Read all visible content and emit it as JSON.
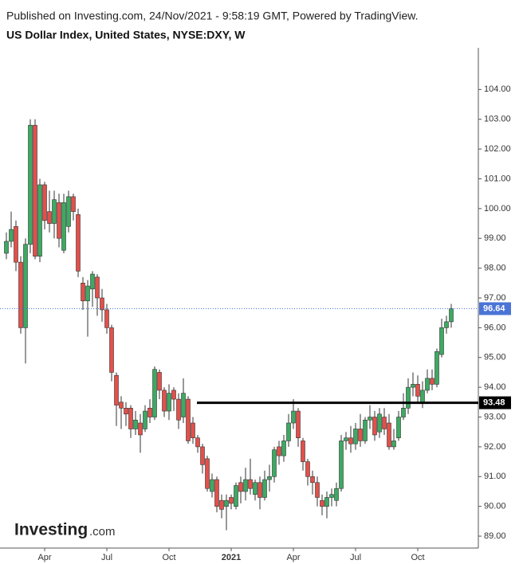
{
  "chart_data": {
    "type": "candlestick",
    "subtitle": "Published on Investing.com, 24/Nov/2021 - 9:58:19 GMT, Powered by TradingView.",
    "title": "US Dollar Index, United States, NYSE:DXY, W",
    "watermark": {
      "name": "Investing",
      "suffix": ".com"
    },
    "categories": [
      null,
      null,
      null,
      null,
      null,
      null,
      null,
      null,
      "Apr",
      null,
      null,
      null,
      null,
      null,
      null,
      null,
      null,
      null,
      null,
      null,
      null,
      "Jul",
      null,
      null,
      null,
      null,
      null,
      null,
      null,
      null,
      null,
      null,
      null,
      null,
      "Oct",
      null,
      null,
      null,
      null,
      null,
      null,
      null,
      null,
      null,
      null,
      null,
      null,
      "2021",
      null,
      null,
      null,
      null,
      null,
      null,
      null,
      null,
      null,
      null,
      null,
      null,
      "Apr",
      null,
      null,
      null,
      null,
      null,
      null,
      null,
      null,
      null,
      null,
      null,
      null,
      "Jul",
      null,
      null,
      null,
      null,
      null,
      null,
      null,
      null,
      null,
      null,
      null,
      null,
      "Oct",
      null,
      null,
      null,
      null,
      null,
      null,
      null
    ],
    "open": [
      98.5,
      98.9,
      99.4,
      98.2,
      96.0,
      98.8,
      102.8,
      98.4,
      100.8,
      99.9,
      99.5,
      100.2,
      98.6,
      99.4,
      100.4,
      99.8,
      97.5,
      96.9,
      97.3,
      97.7,
      97.0,
      96.6,
      96.0,
      94.4,
      93.5,
      93.3,
      93.3,
      92.6,
      92.8,
      92.6,
      93.3,
      93.0,
      94.5,
      93.9,
      93.2,
      93.9,
      93.6,
      93.0,
      93.6,
      92.8,
      92.3,
      92.0,
      91.6,
      90.5,
      90.9,
      90.2,
      90.0,
      90.3,
      90.0,
      90.8,
      90.5,
      90.9,
      90.4,
      90.8,
      90.3,
      90.9,
      91.0,
      92.0,
      91.7,
      92.2,
      92.8,
      93.2,
      92.2,
      91.5,
      91.0,
      90.8,
      90.2,
      90.0,
      90.3,
      90.2,
      90.6,
      92.2,
      92.3,
      92.1,
      92.6,
      92.2,
      92.9,
      93.0,
      92.5,
      93.0,
      92.8,
      92.0,
      92.3,
      93.0,
      93.3,
      94.0,
      94.1,
      93.5,
      93.9,
      94.3,
      94.1,
      95.1,
      96.0,
      96.2
    ],
    "high": [
      99.2,
      99.9,
      99.6,
      98.4,
      99.0,
      103.0,
      103.0,
      101.0,
      100.9,
      100.6,
      100.6,
      100.5,
      100.5,
      100.6,
      100.5,
      100.0,
      97.7,
      97.6,
      97.9,
      97.8,
      97.3,
      96.8,
      96.1,
      94.5,
      93.7,
      93.5,
      93.4,
      93.2,
      93.1,
      93.4,
      93.6,
      94.7,
      94.6,
      94.0,
      94.1,
      94.0,
      93.8,
      94.3,
      93.7,
      93.0,
      92.4,
      92.1,
      91.7,
      91.1,
      91.0,
      90.4,
      90.4,
      90.4,
      90.8,
      91.0,
      91.3,
      91.6,
      90.9,
      91.0,
      91.2,
      91.4,
      92.0,
      92.2,
      92.4,
      93.1,
      93.6,
      93.3,
      92.3,
      91.6,
      91.2,
      91.0,
      90.4,
      90.5,
      90.6,
      90.8,
      92.4,
      92.5,
      92.7,
      92.8,
      93.1,
      93.0,
      93.4,
      93.2,
      93.3,
      93.3,
      93.1,
      92.6,
      93.2,
      93.8,
      94.3,
      94.5,
      94.4,
      94.2,
      94.6,
      94.6,
      95.3,
      96.3,
      96.4,
      96.8
    ],
    "low": [
      98.3,
      98.7,
      97.9,
      95.8,
      94.8,
      98.5,
      98.3,
      98.2,
      99.3,
      99.2,
      99.0,
      98.7,
      98.5,
      99.2,
      99.6,
      97.7,
      96.6,
      95.7,
      96.7,
      96.4,
      96.2,
      95.8,
      94.2,
      92.7,
      92.6,
      92.7,
      92.3,
      92.4,
      91.8,
      92.5,
      92.8,
      92.9,
      93.6,
      93.0,
      92.9,
      93.2,
      92.6,
      92.8,
      92.1,
      92.1,
      91.8,
      91.1,
      90.5,
      90.3,
      89.8,
      89.6,
      89.2,
      89.9,
      89.9,
      90.1,
      90.2,
      90.4,
      90.2,
      89.9,
      90.2,
      90.5,
      90.8,
      91.4,
      91.5,
      92.0,
      92.6,
      92.0,
      91.2,
      90.7,
      90.4,
      90.0,
      89.7,
      89.6,
      90.0,
      90.0,
      90.5,
      91.9,
      91.8,
      91.9,
      92.0,
      92.1,
      92.6,
      92.2,
      92.3,
      92.4,
      91.9,
      91.9,
      92.2,
      92.9,
      93.1,
      93.7,
      93.5,
      93.3,
      93.8,
      93.9,
      94.0,
      95.0,
      95.8,
      96.0
    ],
    "close": [
      98.9,
      99.3,
      98.2,
      96.0,
      98.8,
      102.8,
      98.4,
      100.8,
      99.6,
      99.5,
      100.3,
      99.0,
      100.2,
      100.4,
      99.9,
      97.9,
      96.9,
      97.4,
      97.8,
      97.0,
      96.6,
      96.0,
      94.5,
      93.4,
      93.3,
      93.1,
      92.6,
      92.9,
      92.4,
      93.2,
      93.0,
      94.6,
      93.9,
      93.2,
      93.8,
      93.6,
      92.9,
      93.8,
      92.2,
      92.3,
      92.0,
      91.4,
      90.6,
      90.9,
      90.0,
      89.9,
      90.2,
      90.1,
      90.7,
      90.5,
      90.9,
      90.6,
      90.8,
      90.3,
      90.9,
      91.0,
      91.9,
      91.7,
      92.2,
      92.8,
      93.2,
      92.3,
      91.5,
      91.0,
      90.8,
      90.3,
      90.0,
      90.3,
      90.4,
      90.6,
      92.2,
      92.3,
      92.1,
      92.6,
      92.2,
      92.9,
      93.0,
      92.4,
      93.1,
      92.6,
      92.0,
      92.2,
      93.0,
      93.3,
      94.0,
      94.1,
      93.7,
      93.9,
      94.3,
      94.1,
      95.2,
      96.0,
      96.2,
      96.64
    ],
    "up_color": "#3daa62",
    "down_color": "#e3504a",
    "last_price_color": "#4a74d6",
    "level": 93.48,
    "level_color": "#000000",
    "ylim": [
      88.6,
      105.4
    ],
    "yticks": [
      {
        "value": 89,
        "label": "89.00"
      },
      {
        "value": 90,
        "label": "90.00"
      },
      {
        "value": 91,
        "label": "91.00"
      },
      {
        "value": 92,
        "label": "92.00"
      },
      {
        "value": 93,
        "label": "93.00"
      },
      {
        "value": 94,
        "label": "94.00"
      },
      {
        "value": 95,
        "label": "95.00"
      },
      {
        "value": 96,
        "label": "96.00"
      },
      {
        "value": 97,
        "label": "97.00"
      },
      {
        "value": 98,
        "label": "98.00"
      },
      {
        "value": 99,
        "label": "99.00"
      },
      {
        "value": 100,
        "label": "100.00"
      },
      {
        "value": 101,
        "label": "101.00"
      },
      {
        "value": 102,
        "label": "102.00"
      },
      {
        "value": 103,
        "label": "103.00"
      },
      {
        "value": 104,
        "label": "104.00"
      }
    ],
    "grid": false
  }
}
